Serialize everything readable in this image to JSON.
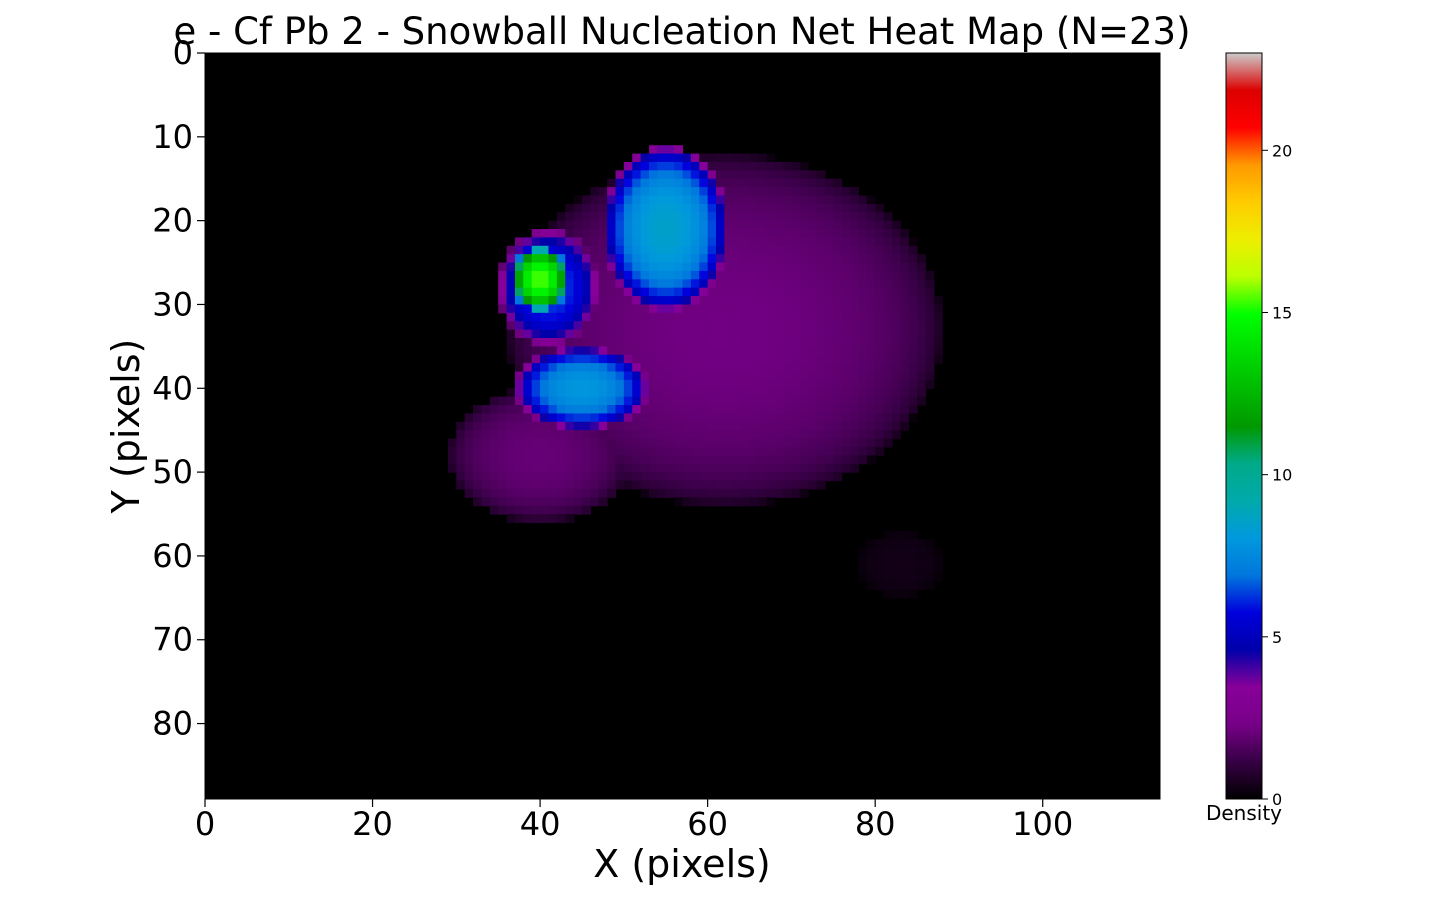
{
  "chart_data": {
    "type": "heatmap",
    "title": "e - Cf Pb 2 - Snowball Nucleation Net Heat Map (N=23)",
    "xlabel": "X (pixels)",
    "ylabel": "Y (pixels)",
    "xlim": [
      0,
      114
    ],
    "ylim": [
      89,
      0
    ],
    "x_ticks": [
      0,
      20,
      40,
      60,
      80,
      100
    ],
    "y_ticks": [
      0,
      10,
      20,
      30,
      40,
      50,
      60,
      70,
      80
    ],
    "colorbar": {
      "label": "Density",
      "range": [
        0,
        23
      ],
      "ticks": [
        0,
        5,
        10,
        15,
        20
      ],
      "colormap": "nipy_spectral"
    },
    "background_color": "#000000",
    "blobs": [
      {
        "name": "halo",
        "cx": 62,
        "cy": 33,
        "rx": 26,
        "ry": 21,
        "peak": 2.2
      },
      {
        "name": "halo-tail-left",
        "cx": 40,
        "cy": 48,
        "rx": 11,
        "ry": 8,
        "peak": 2.0
      },
      {
        "name": "upper-right-lobe",
        "cx": 55,
        "cy": 21,
        "rx": 7.5,
        "ry": 10,
        "peak": 8.5
      },
      {
        "name": "lower-lobe",
        "cx": 45,
        "cy": 40,
        "rx": 8,
        "ry": 5,
        "peak": 8.0
      },
      {
        "name": "left-lobe",
        "cx": 41,
        "cy": 28,
        "rx": 6,
        "ry": 7,
        "peak": 6.5
      },
      {
        "name": "hotspot",
        "cx": 40,
        "cy": 27,
        "rx": 3.5,
        "ry": 4,
        "peak": 15.5
      },
      {
        "name": "faint-spot",
        "cx": 83,
        "cy": 61,
        "rx": 5,
        "ry": 4,
        "peak": 0.4
      }
    ]
  }
}
